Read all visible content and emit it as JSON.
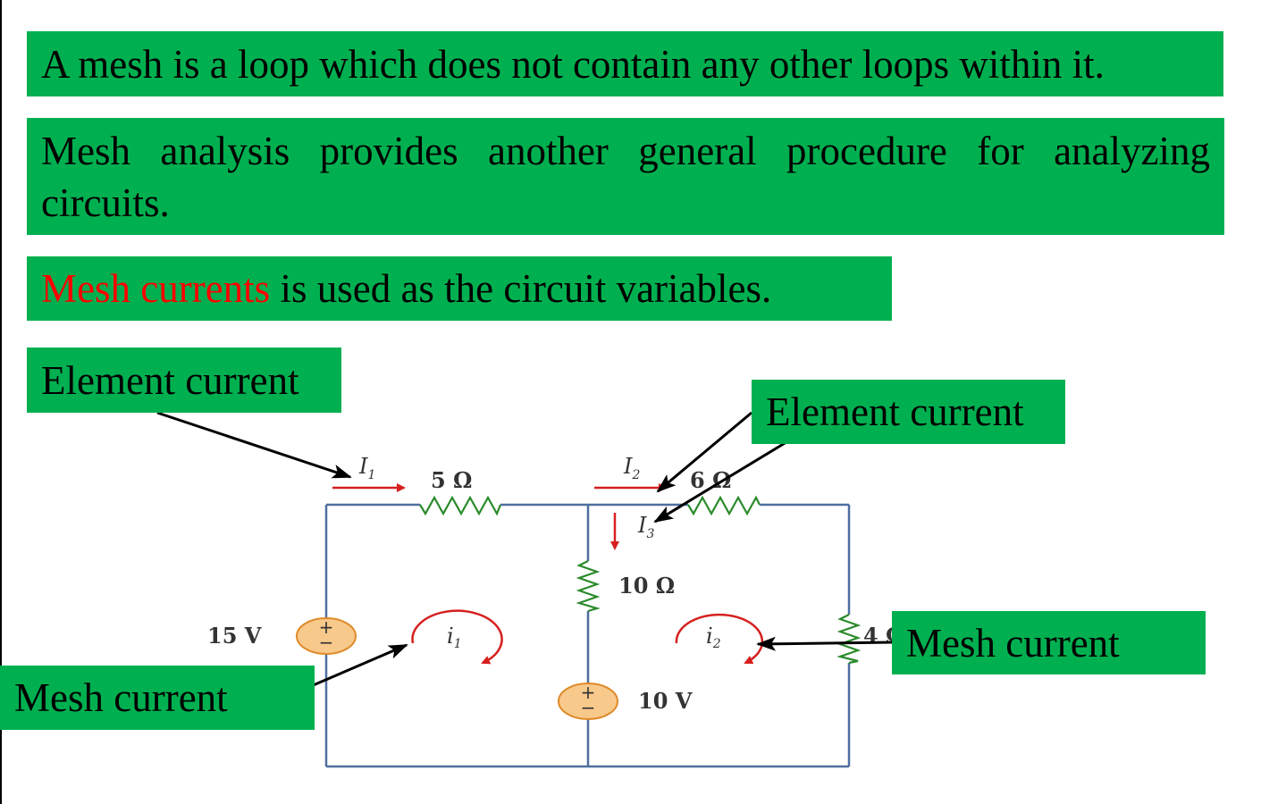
{
  "statements": {
    "mesh_definition": "A mesh is a loop which does not contain any other loops within it.",
    "mesh_analysis": "Mesh analysis provides another general procedure for analyzing circuits.",
    "mesh_currents_highlight": "Mesh currents",
    "mesh_currents_rest": " is used as the circuit variables."
  },
  "callouts": {
    "element_current_left": "Element current",
    "element_current_right": "Element current",
    "mesh_current_left": "Mesh current",
    "mesh_current_right": "Mesh current"
  },
  "circuit": {
    "source_left_label": "15 V",
    "source_middle_label": "10 V",
    "resistor_top_left_label": "5 Ω",
    "resistor_top_right_label": "6 Ω",
    "resistor_middle_label": "10 Ω",
    "resistor_right_label": "4 Ω",
    "I1_main": "I",
    "I1_sub": "1",
    "I2_main": "I",
    "I2_sub": "2",
    "I3_main": "I",
    "I3_sub": "3",
    "i1_main": "i",
    "i1_sub": "1",
    "i2_main": "i",
    "i2_sub": "2",
    "plus_sign": "+",
    "minus_sign": "−"
  },
  "colors": {
    "callout_green": "#00b050",
    "highlight_red": "#ff0000",
    "wire_blue": "#4f6fa0",
    "resistor_green": "#2a8a2a",
    "source_fill": "#f7c98b",
    "arrow_red": "#d62020"
  }
}
